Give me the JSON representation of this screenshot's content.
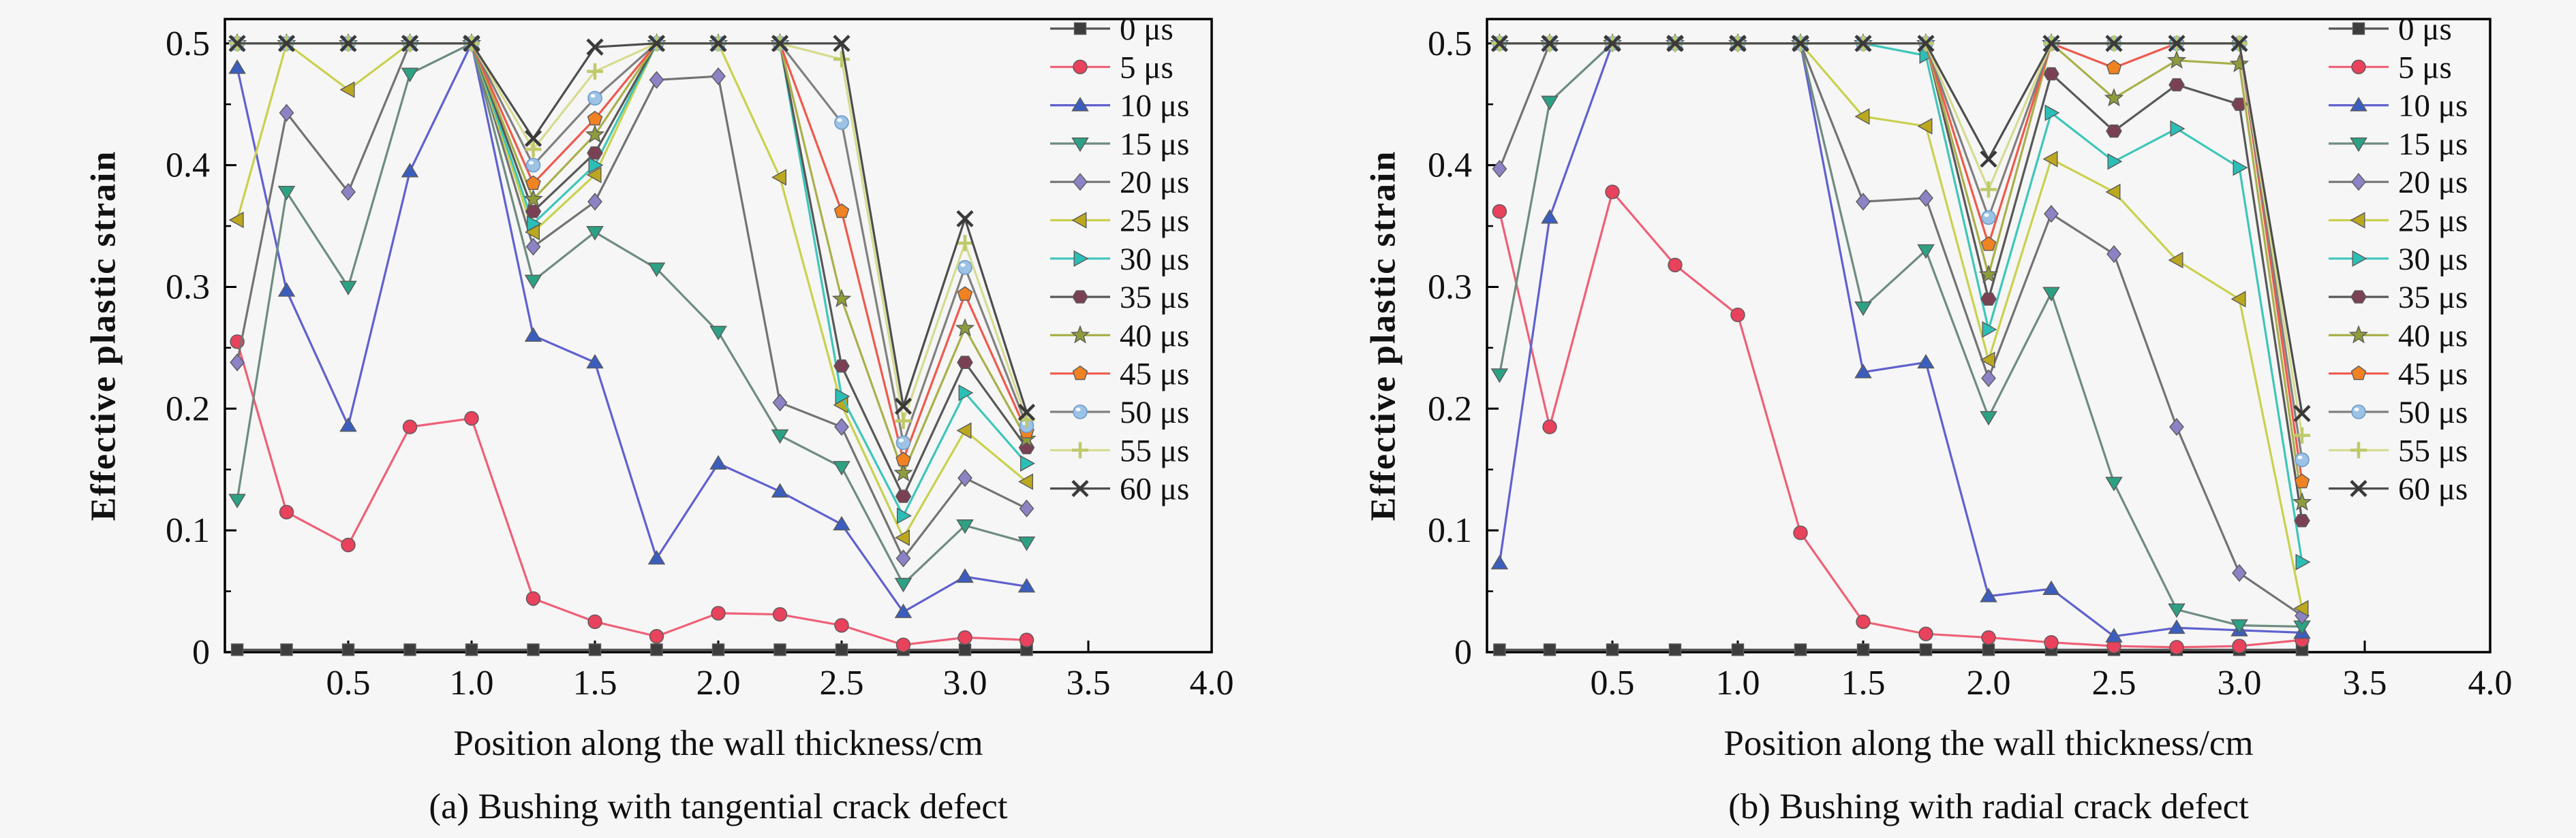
{
  "figure": {
    "background": "#f6f6f6",
    "text_color": "#111111",
    "frame_color": "#000000"
  },
  "chart_data": [
    {
      "type": "line",
      "panel_tag": "a",
      "caption": "(a) Bushing with tangential crack defect",
      "xlabel": "Position along the wall thickness/cm",
      "ylabel": "Effective plastic strain",
      "xlim": [
        0,
        4.0
      ],
      "ylim": [
        0,
        0.52
      ],
      "xticks": [
        0.5,
        1.0,
        1.5,
        2.0,
        2.5,
        3.0,
        3.5,
        4.0
      ],
      "xtick_labels": [
        "0.5",
        "1.0",
        "1.5",
        "2.0",
        "2.5",
        "3.0",
        "3.5",
        "4.0"
      ],
      "yticks": [
        0,
        0.1,
        0.2,
        0.3,
        0.4,
        0.5
      ],
      "ytick_labels": [
        "0",
        "0.1",
        "0.2",
        "0.3",
        "0.4",
        "0.5"
      ],
      "y_minor_step": 0.05,
      "grid": false,
      "legend_position": "inside-top-right",
      "x": [
        0.05,
        0.25,
        0.5,
        0.75,
        1.0,
        1.25,
        1.5,
        1.75,
        2.0,
        2.25,
        2.5,
        2.75,
        3.0,
        3.25
      ],
      "series": [
        {
          "name": "0 μs",
          "marker": "square",
          "color": "#3d3d3d",
          "line_color": "#555555",
          "values": [
            0.002,
            0.002,
            0.002,
            0.002,
            0.002,
            0.002,
            0.002,
            0.002,
            0.002,
            0.002,
            0.002,
            0.002,
            0.002,
            0.002
          ]
        },
        {
          "name": "5 μs",
          "marker": "circle",
          "color": "#e8425c",
          "line_color": "#ee6077",
          "values": [
            0.255,
            0.115,
            0.088,
            0.185,
            0.192,
            0.044,
            0.025,
            0.013,
            0.032,
            0.031,
            0.022,
            0.006,
            0.012,
            0.01
          ]
        },
        {
          "name": "10 μs",
          "marker": "triangle-up",
          "color": "#3b5ebe",
          "line_color": "#5f61cf",
          "values": [
            0.48,
            0.297,
            0.186,
            0.395,
            0.5,
            0.26,
            0.238,
            0.077,
            0.155,
            0.132,
            0.105,
            0.033,
            0.062,
            0.054
          ]
        },
        {
          "name": "15 μs",
          "marker": "triangle-down",
          "color": "#2da183",
          "line_color": "#6e8c80",
          "values": [
            0.125,
            0.378,
            0.3,
            0.475,
            0.5,
            0.305,
            0.345,
            0.315,
            0.263,
            0.178,
            0.152,
            0.056,
            0.104,
            0.09
          ]
        },
        {
          "name": "20 μs",
          "marker": "diamond",
          "color": "#8b83c5",
          "line_color": "#737373",
          "values": [
            0.238,
            0.443,
            0.378,
            0.5,
            0.5,
            0.333,
            0.37,
            0.47,
            0.473,
            0.205,
            0.185,
            0.077,
            0.143,
            0.118
          ]
        },
        {
          "name": "25 μs",
          "marker": "triangle-left",
          "color": "#bba81f",
          "line_color": "#c9d14e",
          "values": [
            0.355,
            0.5,
            0.462,
            0.5,
            0.5,
            0.345,
            0.392,
            0.5,
            0.5,
            0.39,
            0.203,
            0.094,
            0.182,
            0.14
          ]
        },
        {
          "name": "30 μs",
          "marker": "triangle-right",
          "color": "#2abfb6",
          "line_color": "#3ec6ba",
          "values": [
            0.5,
            0.5,
            0.5,
            0.5,
            0.5,
            0.352,
            0.4,
            0.5,
            0.5,
            0.5,
            0.21,
            0.112,
            0.213,
            0.155
          ]
        },
        {
          "name": "35 μs",
          "marker": "hexagon",
          "color": "#7a4154",
          "line_color": "#585858",
          "values": [
            0.5,
            0.5,
            0.5,
            0.5,
            0.5,
            0.362,
            0.41,
            0.5,
            0.5,
            0.5,
            0.235,
            0.128,
            0.238,
            0.168
          ]
        },
        {
          "name": "40 μs",
          "marker": "star",
          "color": "#8f9c3c",
          "line_color": "#a9b04b",
          "values": [
            0.5,
            0.5,
            0.5,
            0.5,
            0.5,
            0.372,
            0.425,
            0.5,
            0.5,
            0.5,
            0.29,
            0.147,
            0.266,
            0.175
          ]
        },
        {
          "name": "45 μs",
          "marker": "pentagon",
          "color": "#f08221",
          "line_color": "#ee5a4d",
          "values": [
            0.5,
            0.5,
            0.5,
            0.5,
            0.5,
            0.385,
            0.438,
            0.5,
            0.5,
            0.5,
            0.362,
            0.158,
            0.294,
            0.181
          ]
        },
        {
          "name": "50 μs",
          "marker": "sphere",
          "color": "#9cc2e5",
          "line_color": "#808080",
          "values": [
            0.5,
            0.5,
            0.5,
            0.5,
            0.5,
            0.4,
            0.455,
            0.5,
            0.5,
            0.5,
            0.435,
            0.172,
            0.316,
            0.186
          ]
        },
        {
          "name": "55 μs",
          "marker": "plus",
          "color": "#c0c96a",
          "line_color": "#d6db90",
          "values": [
            0.5,
            0.5,
            0.5,
            0.5,
            0.5,
            0.413,
            0.477,
            0.5,
            0.5,
            0.5,
            0.487,
            0.19,
            0.336,
            0.191
          ]
        },
        {
          "name": "60 μs",
          "marker": "x-cross",
          "color": "#3a3a3a",
          "line_color": "#4d4d4d",
          "values": [
            0.5,
            0.5,
            0.5,
            0.5,
            0.5,
            0.422,
            0.497,
            0.5,
            0.5,
            0.5,
            0.5,
            0.202,
            0.356,
            0.197
          ]
        }
      ]
    },
    {
      "type": "line",
      "panel_tag": "b",
      "caption": "(b) Bushing with radial crack defect",
      "xlabel": "Position along the wall thickness/cm",
      "ylabel": "Effective plastic strain",
      "xlim": [
        0,
        4.0
      ],
      "ylim": [
        0,
        0.52
      ],
      "xticks": [
        0.5,
        1.0,
        1.5,
        2.0,
        2.5,
        3.0,
        3.5,
        4.0
      ],
      "xtick_labels": [
        "0.5",
        "1.0",
        "1.5",
        "2.0",
        "2.5",
        "3.0",
        "3.5",
        "4.0"
      ],
      "yticks": [
        0,
        0.1,
        0.2,
        0.3,
        0.4,
        0.5
      ],
      "ytick_labels": [
        "0",
        "0.1",
        "0.2",
        "0.3",
        "0.4",
        "0.5"
      ],
      "y_minor_step": 0.05,
      "grid": false,
      "legend_position": "inside-top-right",
      "x": [
        0.05,
        0.25,
        0.5,
        0.75,
        1.0,
        1.25,
        1.5,
        1.75,
        2.0,
        2.25,
        2.5,
        2.75,
        3.0,
        3.25
      ],
      "series": [
        {
          "name": "0 μs",
          "marker": "square",
          "color": "#3d3d3d",
          "line_color": "#555555",
          "values": [
            0.002,
            0.002,
            0.002,
            0.002,
            0.002,
            0.002,
            0.002,
            0.002,
            0.002,
            0.002,
            0.002,
            0.002,
            0.002,
            0.002
          ]
        },
        {
          "name": "5 μs",
          "marker": "circle",
          "color": "#e8425c",
          "line_color": "#ee6077",
          "values": [
            0.362,
            0.185,
            0.378,
            0.318,
            0.277,
            0.098,
            0.025,
            0.015,
            0.012,
            0.008,
            0.005,
            0.004,
            0.005,
            0.01
          ]
        },
        {
          "name": "10 μs",
          "marker": "triangle-up",
          "color": "#3b5ebe",
          "line_color": "#5f61cf",
          "values": [
            0.073,
            0.357,
            0.5,
            0.5,
            0.5,
            0.5,
            0.23,
            0.238,
            0.046,
            0.052,
            0.013,
            0.02,
            0.018,
            0.016
          ]
        },
        {
          "name": "15 μs",
          "marker": "triangle-down",
          "color": "#2da183",
          "line_color": "#6e8c80",
          "values": [
            0.228,
            0.452,
            0.5,
            0.5,
            0.5,
            0.5,
            0.283,
            0.33,
            0.193,
            0.295,
            0.139,
            0.035,
            0.022,
            0.021
          ]
        },
        {
          "name": "20 μs",
          "marker": "diamond",
          "color": "#8b83c5",
          "line_color": "#737373",
          "values": [
            0.397,
            0.5,
            0.5,
            0.5,
            0.5,
            0.5,
            0.37,
            0.373,
            0.225,
            0.36,
            0.327,
            0.185,
            0.065,
            0.03
          ]
        },
        {
          "name": "25 μs",
          "marker": "triangle-left",
          "color": "#bba81f",
          "line_color": "#c9d14e",
          "values": [
            0.5,
            0.5,
            0.5,
            0.5,
            0.5,
            0.5,
            0.44,
            0.432,
            0.24,
            0.405,
            0.378,
            0.322,
            0.29,
            0.036
          ]
        },
        {
          "name": "30 μs",
          "marker": "triangle-right",
          "color": "#2abfb6",
          "line_color": "#3ec6ba",
          "values": [
            0.5,
            0.5,
            0.5,
            0.5,
            0.5,
            0.5,
            0.5,
            0.49,
            0.265,
            0.443,
            0.403,
            0.43,
            0.398,
            0.074
          ]
        },
        {
          "name": "35 μs",
          "marker": "hexagon",
          "color": "#7a4154",
          "line_color": "#585858",
          "values": [
            0.5,
            0.5,
            0.5,
            0.5,
            0.5,
            0.5,
            0.5,
            0.5,
            0.29,
            0.475,
            0.428,
            0.466,
            0.45,
            0.108
          ]
        },
        {
          "name": "40 μs",
          "marker": "star",
          "color": "#8f9c3c",
          "line_color": "#a9b04b",
          "values": [
            0.5,
            0.5,
            0.5,
            0.5,
            0.5,
            0.5,
            0.5,
            0.5,
            0.31,
            0.5,
            0.455,
            0.486,
            0.483,
            0.123
          ]
        },
        {
          "name": "45 μs",
          "marker": "pentagon",
          "color": "#f08221",
          "line_color": "#ee5a4d",
          "values": [
            0.5,
            0.5,
            0.5,
            0.5,
            0.5,
            0.5,
            0.5,
            0.5,
            0.335,
            0.5,
            0.48,
            0.5,
            0.5,
            0.14
          ]
        },
        {
          "name": "50 μs",
          "marker": "sphere",
          "color": "#9cc2e5",
          "line_color": "#808080",
          "values": [
            0.5,
            0.5,
            0.5,
            0.5,
            0.5,
            0.5,
            0.5,
            0.5,
            0.357,
            0.5,
            0.5,
            0.5,
            0.5,
            0.158
          ]
        },
        {
          "name": "55 μs",
          "marker": "plus",
          "color": "#c0c96a",
          "line_color": "#d6db90",
          "values": [
            0.5,
            0.5,
            0.5,
            0.5,
            0.5,
            0.5,
            0.5,
            0.5,
            0.38,
            0.5,
            0.5,
            0.5,
            0.5,
            0.178
          ]
        },
        {
          "name": "60 μs",
          "marker": "x-cross",
          "color": "#3a3a3a",
          "line_color": "#4d4d4d",
          "values": [
            0.5,
            0.5,
            0.5,
            0.5,
            0.5,
            0.5,
            0.5,
            0.5,
            0.405,
            0.5,
            0.5,
            0.5,
            0.5,
            0.196
          ]
        }
      ]
    }
  ]
}
